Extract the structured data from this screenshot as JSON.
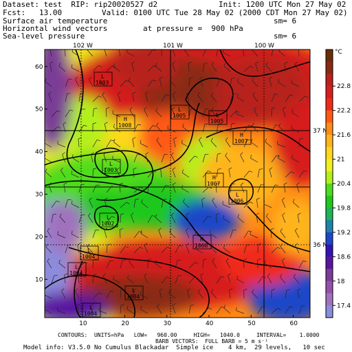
{
  "header": {
    "dataset": "Dataset: test  RIP: rip20020527 d2",
    "init": "Init: 1200 UTC Mon 27 May 02",
    "fcst": "Fcst:   13.00",
    "valid": "Valid: 0100 UTC Tue 28 May 02 (2000 CDT Mon 27 May 02)",
    "field1": "Surface air temperature",
    "field2": "Horizontal wind vectors",
    "field3": "Sea-level pressure",
    "pressure": "at pressure =  900 hPa",
    "sm1": "sm= 6",
    "sm2": "sm= 6"
  },
  "map": {
    "lon_labels": [
      "102 W",
      "101 W",
      "100 W"
    ],
    "lat_labels": [
      "37 N",
      "36 N"
    ],
    "x_ticks": [
      "10",
      "20",
      "30",
      "40",
      "50",
      "60"
    ],
    "y_ticks": [
      "10",
      "20",
      "30",
      "40",
      "50",
      "60"
    ],
    "pressure_centers": [
      {
        "type": "L",
        "value": "1003"
      },
      {
        "type": "H",
        "value": "1008"
      },
      {
        "type": "L",
        "value": "1005"
      },
      {
        "type": "L",
        "value": "1005"
      },
      {
        "type": "H",
        "value": "1007"
      },
      {
        "type": "L",
        "value": "1003"
      },
      {
        "type": "H",
        "value": "1007"
      },
      {
        "type": "L",
        "value": "1006"
      },
      {
        "type": "L",
        "value": "1002"
      },
      {
        "type": "H",
        "value": "1008"
      },
      {
        "type": "L",
        "value": "1004"
      },
      {
        "type": "L",
        "value": "1004"
      },
      {
        "type": "L",
        "value": "1004"
      },
      {
        "type": "L",
        "value": "1004"
      }
    ]
  },
  "colorbar": {
    "unit": "°C",
    "labels": [
      "22.8",
      "22.2",
      "21.6",
      "21",
      "20.4",
      "19.8",
      "19.2",
      "18.6",
      "18",
      "17.4"
    ],
    "colors": [
      "#6b2c0a",
      "#8a2a12",
      "#b8221e",
      "#d61e1e",
      "#f02a1a",
      "#ff5a14",
      "#ff8c14",
      "#ffb41e",
      "#ffd81e",
      "#f0f01e",
      "#b4f01e",
      "#50dc1e",
      "#1ec81e",
      "#1eb45a",
      "#1e82aa",
      "#1e46c8",
      "#3214b4",
      "#5a14a0",
      "#7a3c96",
      "#9650aa",
      "#a072be",
      "#8c8cdc"
    ]
  },
  "footer": {
    "line1": "CONTOURS:  UNITS=hPa   LOW=   960.00     HIGH=   1040.0     INTERVAL=    1.0000",
    "line2": "BARB VECTORS:  FULL BARB = 5 m s⁻¹",
    "line3": "Model info: V3.5.0 No Cumulus Blackadar  Simple ice    4 km,  29 levels,   10 sec"
  }
}
